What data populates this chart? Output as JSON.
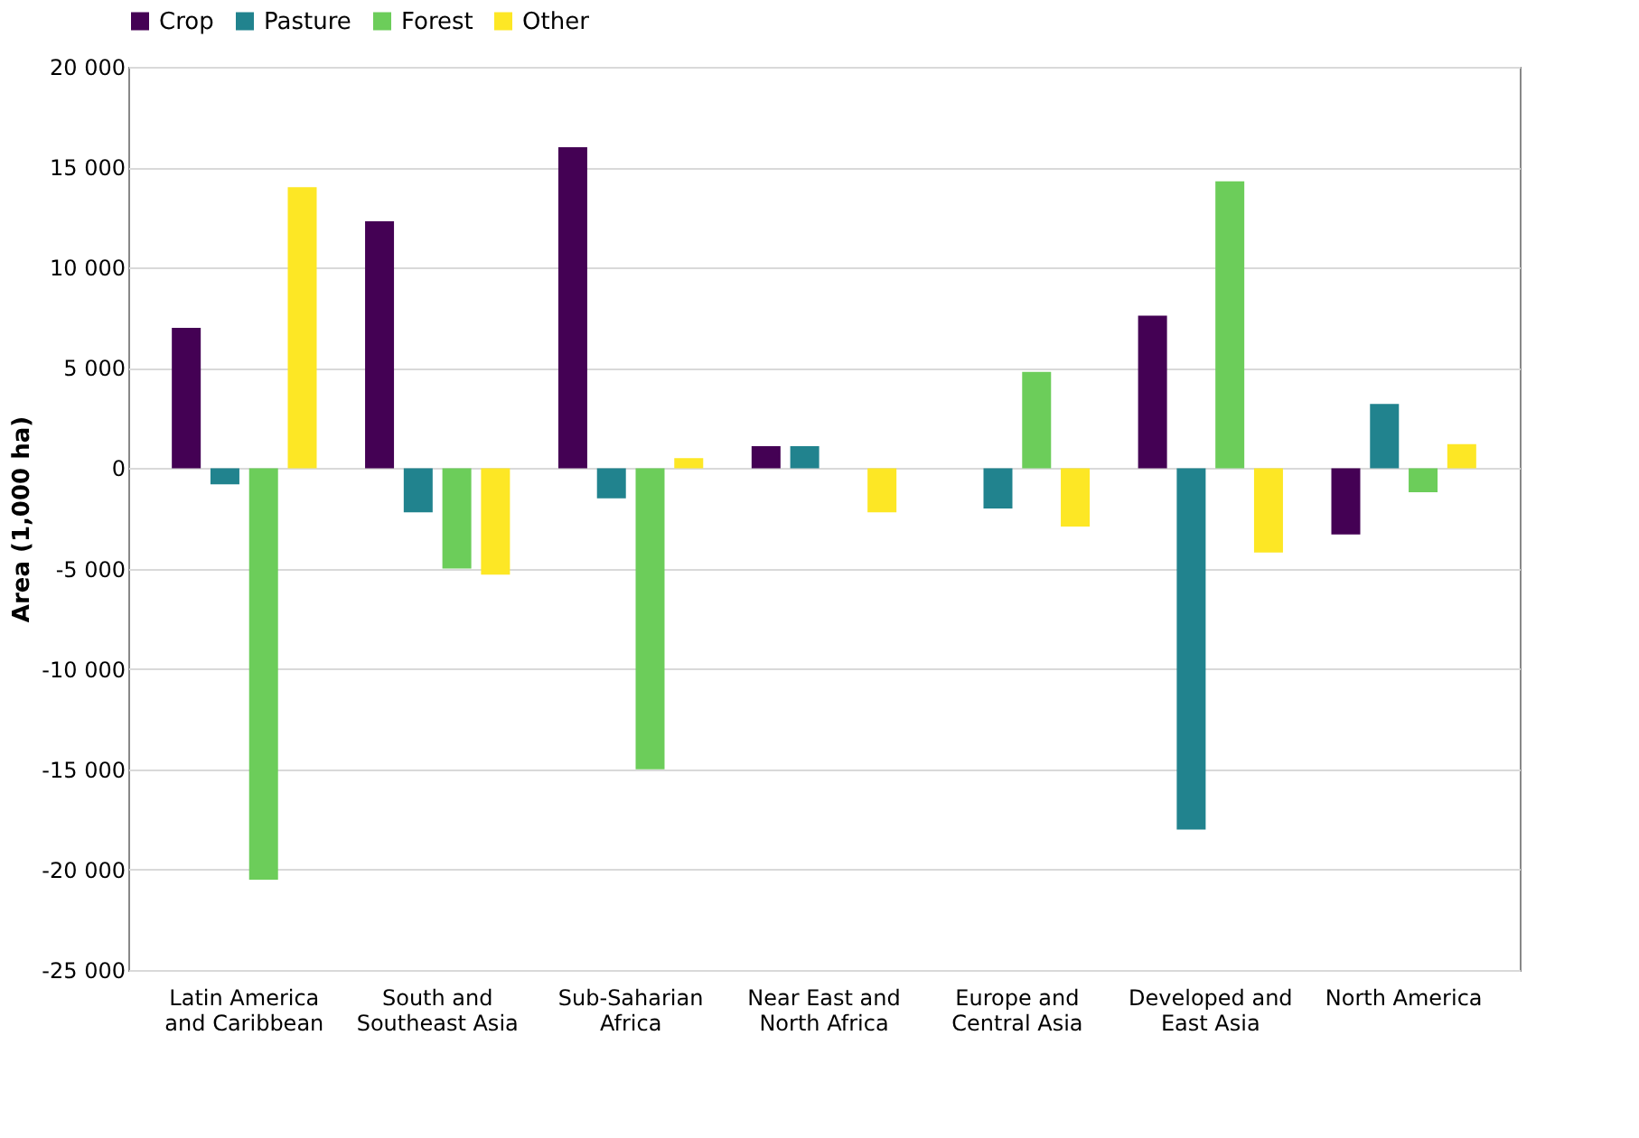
{
  "chart_data": {
    "type": "bar",
    "ylabel": "Area (1,000 ha)",
    "categories": [
      "Latin America and Caribbean",
      "South and Southeast Asia",
      "Sub-Saharian Africa",
      "Near East and North Africa",
      "Europe and Central Asia",
      "Developed and East Asia",
      "North America"
    ],
    "series": [
      {
        "name": "Crop",
        "color": "#440154",
        "values": [
          7000,
          12300,
          16000,
          1100,
          null,
          7600,
          -3300
        ]
      },
      {
        "name": "Pasture",
        "color": "#21838e",
        "values": [
          -800,
          -2200,
          -1500,
          1100,
          -2000,
          -18000,
          3200
        ]
      },
      {
        "name": "Forest",
        "color": "#6ccd5a",
        "values": [
          -20500,
          -5000,
          -15000,
          null,
          4800,
          14300,
          -1200
        ]
      },
      {
        "name": "Other",
        "color": "#fde725",
        "values": [
          14000,
          -5300,
          500,
          -2200,
          -2900,
          -4200,
          1200
        ]
      }
    ],
    "ylim": [
      -25000,
      20000
    ],
    "yticks": [
      {
        "value": -25000,
        "label": "-25 000"
      },
      {
        "value": -20000,
        "label": "-20 000"
      },
      {
        "value": -15000,
        "label": "-15 000"
      },
      {
        "value": -10000,
        "label": "-10 000"
      },
      {
        "value": -5000,
        "label": "-5 000"
      },
      0,
      {
        "value": 5000,
        "label": "5 000"
      },
      {
        "value": 10000,
        "label": "10 000"
      },
      {
        "value": 15000,
        "label": "15 000"
      },
      {
        "value": 20000,
        "label": "20 000"
      }
    ],
    "grid": "y",
    "legend": "top"
  }
}
